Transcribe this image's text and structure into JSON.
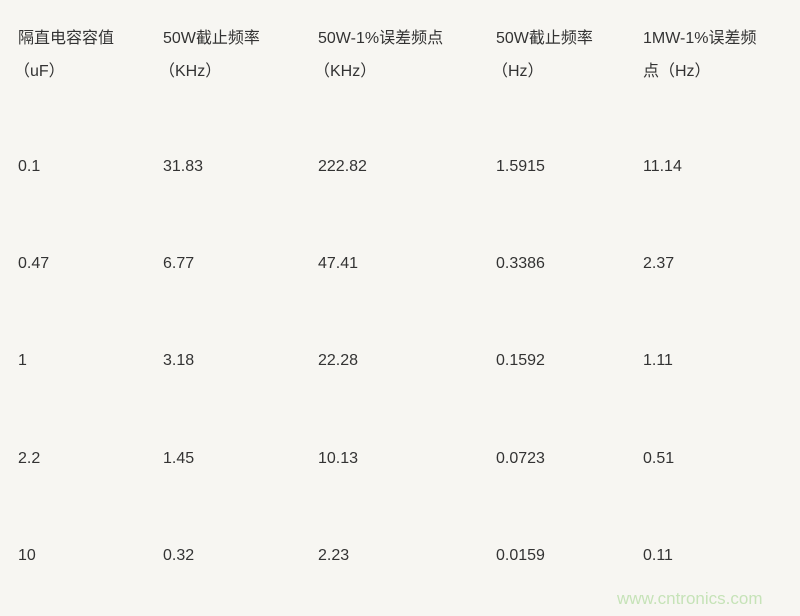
{
  "table": {
    "headers": [
      {
        "line1": "隔直电容容值",
        "line2": "（uF）"
      },
      {
        "line1": "50W截止频率",
        "line2": "（KHz）"
      },
      {
        "line1": "50W-1%误差频点",
        "line2": "（KHz）"
      },
      {
        "line1": "50W截止频率",
        "line2": "（Hz）"
      },
      {
        "line1": "1MW-1%误差频",
        "line2": "点（Hz）"
      }
    ],
    "rows": [
      [
        "0.1",
        "31.83",
        "222.82",
        "1.5915",
        "11.14"
      ],
      [
        "0.47",
        "6.77",
        "47.41",
        "0.3386",
        "2.37"
      ],
      [
        "1",
        "3.18",
        "22.28",
        "0.1592",
        "1.11"
      ],
      [
        "2.2",
        "1.45",
        "10.13",
        "0.0723",
        "0.51"
      ],
      [
        "10",
        "0.32",
        "2.23",
        "0.0159",
        "0.11"
      ]
    ]
  },
  "watermark": "www.cntronics.com",
  "colors": {
    "background": "#f7f6f2",
    "text": "#333333",
    "watermark": "#c6e3b8"
  }
}
